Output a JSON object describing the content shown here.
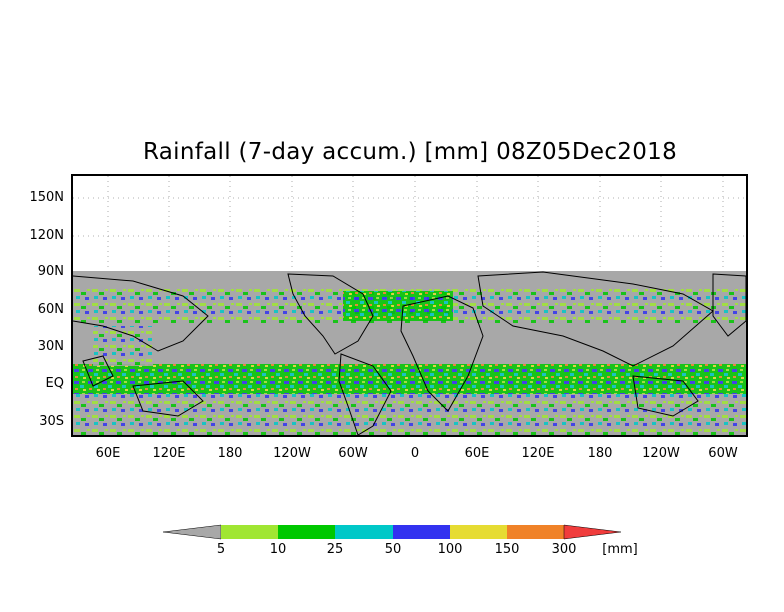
{
  "title": "Rainfall (7-day accum.) [mm] 08Z05Dec2018",
  "axes": {
    "y_ticks": [
      "150N",
      "120N",
      "90N",
      "60N",
      "30N",
      "EQ",
      "30S"
    ],
    "x_ticks": [
      "60E",
      "120E",
      "180",
      "120W",
      "60W",
      "0",
      "60E",
      "120E",
      "180",
      "120W",
      "60W"
    ]
  },
  "colorbar": {
    "thresholds": [
      "5",
      "10",
      "25",
      "50",
      "100",
      "150",
      "300"
    ],
    "units": "[mm]",
    "colors": [
      "#a8a8a8",
      "#a0e632",
      "#00c800",
      "#00c8c8",
      "#3232f0",
      "#e6dc32",
      "#f08228",
      "#f03c3c"
    ]
  },
  "colors": {
    "no_rain": "#a8a8a8",
    "frame": "#000000",
    "grid": "#999999",
    "coast": "#000000"
  }
}
